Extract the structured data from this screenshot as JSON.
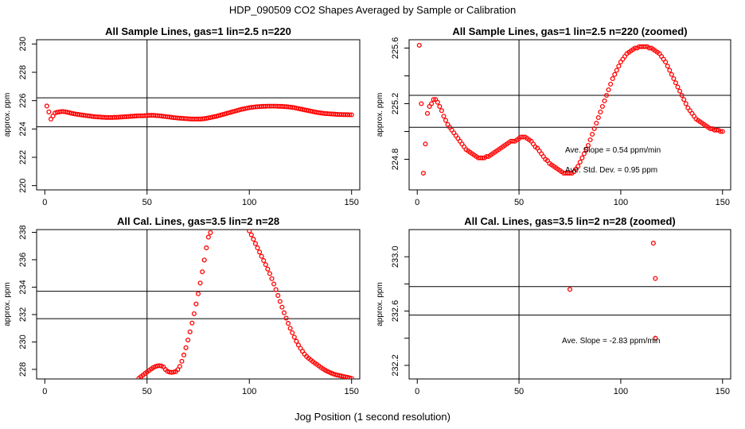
{
  "figure": {
    "title": "HDP_090509  CO2 Shapes Averaged by Sample or Calibration",
    "xlabel": "Jog Position (1 second resolution)"
  },
  "colors": {
    "points": "#ff0000",
    "axes": "#000000"
  },
  "chart_data": [
    {
      "type": "scatter",
      "title": "All Sample Lines, gas=1 lin=2.5 n=220",
      "xlabel": "",
      "ylabel": "approx. ppm",
      "xlim": [
        -4,
        154
      ],
      "ylim": [
        219.7,
        230.3
      ],
      "xticks": [
        0,
        50,
        100,
        150
      ],
      "yticks": [
        220,
        222,
        224,
        226,
        228,
        230
      ],
      "vlines": [
        50
      ],
      "hlines": [
        224.15,
        226.2
      ],
      "annotations": [],
      "series": [
        {
          "name": "sample",
          "x": [
            1,
            2,
            3,
            4,
            5,
            6,
            7,
            8,
            9,
            10,
            11,
            12,
            13,
            14,
            15,
            16,
            17,
            18,
            19,
            20,
            21,
            22,
            23,
            24,
            25,
            26,
            27,
            28,
            29,
            30,
            31,
            32,
            33,
            34,
            35,
            36,
            37,
            38,
            39,
            40,
            41,
            42,
            43,
            44,
            45,
            46,
            47,
            48,
            49,
            50,
            51,
            52,
            53,
            54,
            55,
            56,
            57,
            58,
            59,
            60,
            61,
            62,
            63,
            64,
            65,
            66,
            67,
            68,
            69,
            70,
            71,
            72,
            73,
            74,
            75,
            76,
            77,
            78,
            79,
            80,
            81,
            82,
            83,
            84,
            85,
            86,
            87,
            88,
            89,
            90,
            91,
            92,
            93,
            94,
            95,
            96,
            97,
            98,
            99,
            100,
            101,
            102,
            103,
            104,
            105,
            106,
            107,
            108,
            109,
            110,
            111,
            112,
            113,
            114,
            115,
            116,
            117,
            118,
            119,
            120,
            121,
            122,
            123,
            124,
            125,
            126,
            127,
            128,
            129,
            130,
            131,
            132,
            133,
            134,
            135,
            136,
            137,
            138,
            139,
            140,
            141,
            142,
            143,
            144,
            145,
            146,
            147,
            148,
            149,
            150
          ],
          "y": [
            225.62,
            225.2,
            224.7,
            224.91,
            225.13,
            225.18,
            225.2,
            225.23,
            225.23,
            225.21,
            225.18,
            225.15,
            225.11,
            225.08,
            225.05,
            225.03,
            225.01,
            224.99,
            224.97,
            224.95,
            224.93,
            224.91,
            224.89,
            224.87,
            224.86,
            224.85,
            224.84,
            224.83,
            224.82,
            224.81,
            224.81,
            224.81,
            224.81,
            224.82,
            224.82,
            224.83,
            224.84,
            224.85,
            224.86,
            224.87,
            224.88,
            224.89,
            224.9,
            224.91,
            224.92,
            224.93,
            224.93,
            224.93,
            224.94,
            224.95,
            224.96,
            224.96,
            224.96,
            224.95,
            224.94,
            224.93,
            224.91,
            224.89,
            224.88,
            224.86,
            224.84,
            224.82,
            224.8,
            224.79,
            224.77,
            224.76,
            224.75,
            224.74,
            224.73,
            224.72,
            224.71,
            224.7,
            224.7,
            224.7,
            224.7,
            224.7,
            224.71,
            224.73,
            224.75,
            224.78,
            224.81,
            224.84,
            224.87,
            224.9,
            224.94,
            224.98,
            225.02,
            225.06,
            225.1,
            225.14,
            225.18,
            225.22,
            225.26,
            225.3,
            225.34,
            225.38,
            225.41,
            225.44,
            225.47,
            225.5,
            225.52,
            225.54,
            225.56,
            225.57,
            225.58,
            225.59,
            225.6,
            225.6,
            225.61,
            225.61,
            225.61,
            225.61,
            225.61,
            225.6,
            225.6,
            225.59,
            225.58,
            225.57,
            225.56,
            225.54,
            225.52,
            225.5,
            225.47,
            225.44,
            225.41,
            225.38,
            225.35,
            225.32,
            225.29,
            225.26,
            225.23,
            225.2,
            225.17,
            225.15,
            225.13,
            225.11,
            225.09,
            225.08,
            225.07,
            225.06,
            225.05,
            225.04,
            225.03,
            225.02,
            225.02,
            225.01,
            225.01,
            225.01,
            225.0,
            225.0
          ]
        }
      ]
    },
    {
      "type": "scatter",
      "title": "All Sample Lines, gas=1 lin=2.5 n=220 (zoomed)",
      "xlabel": "",
      "ylabel": "approx. ppm",
      "xlim": [
        -4,
        154
      ],
      "ylim": [
        224.58,
        225.66
      ],
      "xticks": [
        0,
        50,
        100,
        150
      ],
      "yticks": [
        224.8,
        225.0,
        225.2,
        225.4,
        225.6
      ],
      "ytick_labels": [
        "224.8",
        "",
        "225.2",
        "",
        "225.6"
      ],
      "vlines": [
        50
      ],
      "hlines": [
        225.03,
        225.26
      ],
      "annotations": [
        "Ave. Slope =  0.54  ppm/min",
        "Ave. Std. Dev. =  0.95  ppm"
      ],
      "series": [
        {
          "name": "sample-zoomed",
          "x": [
            1,
            2,
            3,
            4,
            5,
            6,
            7,
            8,
            9,
            10,
            11,
            12,
            13,
            14,
            15,
            16,
            17,
            18,
            19,
            20,
            21,
            22,
            23,
            24,
            25,
            26,
            27,
            28,
            29,
            30,
            31,
            32,
            33,
            34,
            35,
            36,
            37,
            38,
            39,
            40,
            41,
            42,
            43,
            44,
            45,
            46,
            47,
            48,
            49,
            50,
            51,
            52,
            53,
            54,
            55,
            56,
            57,
            58,
            59,
            60,
            61,
            62,
            63,
            64,
            65,
            66,
            67,
            68,
            69,
            70,
            71,
            72,
            73,
            74,
            75,
            76,
            77,
            78,
            79,
            80,
            81,
            82,
            83,
            84,
            85,
            86,
            87,
            88,
            89,
            90,
            91,
            92,
            93,
            94,
            95,
            96,
            97,
            98,
            99,
            100,
            101,
            102,
            103,
            104,
            105,
            106,
            107,
            108,
            109,
            110,
            111,
            112,
            113,
            114,
            115,
            116,
            117,
            118,
            119,
            120,
            121,
            122,
            123,
            124,
            125,
            126,
            127,
            128,
            129,
            130,
            131,
            132,
            133,
            134,
            135,
            136,
            137,
            138,
            139,
            140,
            141,
            142,
            143,
            144,
            145,
            146,
            147,
            148,
            149,
            150
          ],
          "y": [
            225.62,
            225.2,
            224.7,
            224.91,
            225.13,
            225.18,
            225.2,
            225.23,
            225.23,
            225.21,
            225.18,
            225.15,
            225.11,
            225.08,
            225.05,
            225.03,
            225.01,
            224.99,
            224.97,
            224.95,
            224.93,
            224.91,
            224.89,
            224.87,
            224.86,
            224.85,
            224.84,
            224.83,
            224.82,
            224.81,
            224.81,
            224.81,
            224.81,
            224.82,
            224.82,
            224.83,
            224.84,
            224.85,
            224.86,
            224.87,
            224.88,
            224.89,
            224.9,
            224.91,
            224.92,
            224.93,
            224.93,
            224.93,
            224.94,
            224.95,
            224.96,
            224.96,
            224.96,
            224.95,
            224.94,
            224.93,
            224.91,
            224.89,
            224.88,
            224.86,
            224.84,
            224.82,
            224.8,
            224.79,
            224.77,
            224.76,
            224.75,
            224.74,
            224.73,
            224.72,
            224.71,
            224.7,
            224.7,
            224.7,
            224.7,
            224.7,
            224.71,
            224.73,
            224.75,
            224.78,
            224.81,
            224.84,
            224.87,
            224.9,
            224.94,
            224.98,
            225.02,
            225.06,
            225.1,
            225.14,
            225.18,
            225.22,
            225.26,
            225.3,
            225.34,
            225.38,
            225.41,
            225.44,
            225.47,
            225.5,
            225.52,
            225.54,
            225.56,
            225.57,
            225.58,
            225.59,
            225.6,
            225.6,
            225.61,
            225.61,
            225.61,
            225.61,
            225.61,
            225.6,
            225.6,
            225.59,
            225.58,
            225.57,
            225.56,
            225.54,
            225.52,
            225.5,
            225.47,
            225.44,
            225.41,
            225.38,
            225.35,
            225.32,
            225.29,
            225.26,
            225.23,
            225.2,
            225.17,
            225.15,
            225.13,
            225.11,
            225.09,
            225.08,
            225.07,
            225.06,
            225.05,
            225.04,
            225.03,
            225.02,
            225.02,
            225.01,
            225.01,
            225.01,
            225.0,
            225.0
          ]
        }
      ]
    },
    {
      "type": "scatter",
      "title": "All Cal. Lines, gas=3.5 lin=2 n=28",
      "xlabel": "",
      "ylabel": "approx. ppm",
      "xlim": [
        -4,
        154
      ],
      "ylim": [
        227.3,
        238.2
      ],
      "xticks": [
        0,
        50,
        100,
        150
      ],
      "yticks": [
        228,
        230,
        232,
        234,
        236,
        238
      ],
      "vlines": [
        50
      ],
      "hlines": [
        231.7,
        233.7
      ],
      "annotations": [],
      "series": [
        {
          "name": "calibration",
          "x": [
            46,
            47,
            48,
            49,
            50,
            51,
            52,
            53,
            54,
            55,
            56,
            57,
            58,
            59,
            60,
            61,
            62,
            63,
            64,
            65,
            66,
            67,
            68,
            69,
            70,
            71,
            72,
            73,
            74,
            75,
            76,
            77,
            78,
            79,
            80,
            81,
            100,
            101,
            102,
            103,
            104,
            105,
            106,
            107,
            108,
            109,
            110,
            111,
            112,
            113,
            114,
            115,
            116,
            117,
            118,
            119,
            120,
            121,
            122,
            123,
            124,
            125,
            126,
            127,
            128,
            129,
            130,
            131,
            132,
            133,
            134,
            135,
            136,
            137,
            138,
            139,
            140,
            141,
            142,
            143,
            144,
            145,
            146,
            147,
            148,
            149,
            150
          ],
          "y": [
            227.35,
            227.47,
            227.58,
            227.7,
            227.81,
            227.92,
            228.03,
            228.13,
            228.2,
            228.25,
            228.27,
            228.25,
            228.17,
            227.99,
            227.86,
            227.8,
            227.78,
            227.8,
            227.84,
            227.98,
            228.22,
            228.59,
            229.05,
            229.58,
            230.14,
            230.74,
            231.38,
            232.06,
            232.77,
            233.52,
            234.3,
            235.12,
            235.98,
            236.87,
            237.65,
            237.98,
            238.1,
            237.82,
            237.5,
            237.18,
            236.87,
            236.56,
            236.25,
            235.94,
            235.64,
            235.32,
            234.99,
            234.62,
            234.23,
            233.82,
            233.39,
            232.96,
            232.54,
            232.13,
            231.74,
            231.36,
            231.0,
            230.67,
            230.35,
            230.05,
            229.78,
            229.54,
            229.32,
            229.11,
            228.94,
            228.81,
            228.69,
            228.57,
            228.46,
            228.36,
            228.25,
            228.14,
            228.04,
            227.95,
            227.87,
            227.8,
            227.73,
            227.67,
            227.62,
            227.58,
            227.55,
            227.52,
            227.48,
            227.45,
            227.42,
            227.38,
            227.34
          ]
        }
      ]
    },
    {
      "type": "scatter",
      "title": "All Cal. Lines, gas=3.5 lin=2 n=28 (zoomed)",
      "xlabel": "",
      "ylabel": "approx. ppm",
      "xlim": [
        -4,
        154
      ],
      "ylim": [
        232.1,
        233.2
      ],
      "xticks": [
        0,
        50,
        100,
        150
      ],
      "yticks": [
        232.2,
        232.4,
        232.6,
        232.8,
        233.0
      ],
      "ytick_labels": [
        "232.2",
        "",
        "232.6",
        "",
        "233.0"
      ],
      "vlines": [
        50
      ],
      "hlines": [
        232.57,
        232.78
      ],
      "annotations": [
        "Ave. Slope =  -2.83  ppm/min"
      ],
      "series": [
        {
          "name": "calibration-zoomed",
          "x": [
            75,
            116,
            117,
            117
          ],
          "y": [
            232.76,
            233.1,
            232.84,
            232.4
          ]
        }
      ]
    }
  ]
}
